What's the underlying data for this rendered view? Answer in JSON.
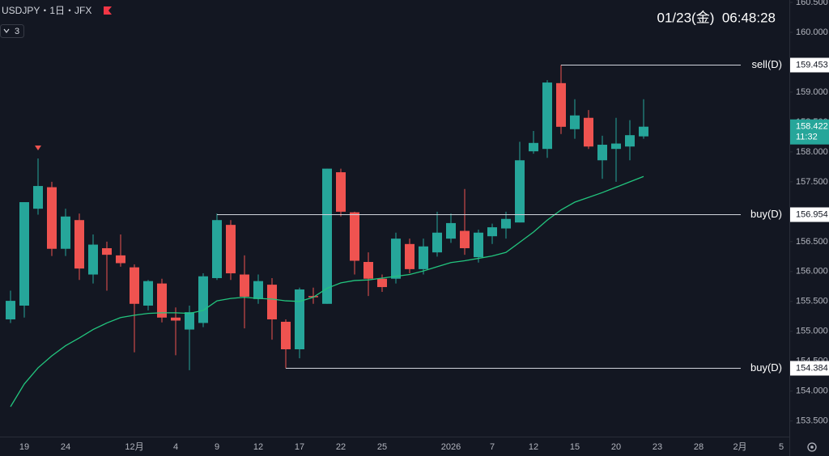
{
  "chart_data": {
    "type": "candlestick",
    "title": "USDJPY・1日・JFX",
    "indicator_count": 3,
    "clock": "01/23(金)  06:48:28",
    "categories": [
      null,
      "19",
      null,
      null,
      "24",
      null,
      null,
      null,
      null,
      "12月",
      null,
      null,
      "4",
      null,
      null,
      "9",
      null,
      null,
      "12",
      null,
      null,
      "17",
      null,
      null,
      "22",
      null,
      null,
      "25",
      null,
      null,
      null,
      null,
      "2026",
      null,
      null,
      "7",
      null,
      null,
      "12",
      null,
      null,
      "15",
      null,
      null,
      "20",
      null,
      null,
      "23",
      null,
      null,
      "28",
      null,
      null,
      "2月",
      null,
      null,
      "5"
    ],
    "open": [
      155.2,
      155.43,
      157.05,
      157.41,
      156.38,
      156.86,
      155.95,
      156.39,
      156.27,
      156.07,
      155.43,
      155.8,
      155.23,
      155.03,
      155.14,
      155.89,
      156.78,
      155.95,
      155.54,
      155.78,
      155.16,
      154.7,
      155.59,
      155.46,
      157.66,
      156.99,
      156.16,
      155.88,
      155.88,
      156.46,
      156.04,
      156.32,
      156.55,
      156.68,
      156.24,
      156.59,
      156.72,
      156.82,
      158.01,
      158.05,
      159.15,
      158.38,
      158.57,
      157.86,
      158.05,
      158.09,
      158.26,
      null,
      null,
      null,
      null,
      null,
      null,
      null,
      null,
      null,
      null
    ],
    "high": [
      155.68,
      157.16,
      157.89,
      157.5,
      157.05,
      156.97,
      156.62,
      156.5,
      156.62,
      156.12,
      155.86,
      155.88,
      155.4,
      155.43,
      155.97,
      156.97,
      156.86,
      156.27,
      155.95,
      155.89,
      155.2,
      155.73,
      155.73,
      157.72,
      157.72,
      157.0,
      156.32,
      155.95,
      156.65,
      156.55,
      156.55,
      157.0,
      156.97,
      157.38,
      156.7,
      156.8,
      157.0,
      158.17,
      158.35,
      159.2,
      159.453,
      158.88,
      158.7,
      158.27,
      158.57,
      158.53,
      158.88,
      null,
      null,
      null,
      null,
      null,
      null,
      null,
      null,
      null,
      null
    ],
    "low": [
      155.14,
      155.23,
      156.95,
      156.26,
      156.26,
      155.86,
      155.8,
      155.68,
      156.08,
      154.65,
      155.35,
      155.15,
      154.6,
      154.35,
      155.07,
      155.86,
      155.86,
      155.05,
      155.46,
      154.86,
      154.384,
      154.55,
      155.46,
      155.46,
      156.92,
      155.95,
      155.59,
      155.66,
      155.8,
      155.97,
      155.95,
      156.25,
      156.48,
      156.28,
      156.15,
      156.46,
      156.55,
      156.82,
      157.97,
      157.9,
      158.3,
      158.22,
      158.05,
      157.55,
      157.5,
      157.86,
      158.22,
      null,
      null,
      null,
      null,
      null,
      null,
      null,
      null,
      null,
      null
    ],
    "close": [
      155.51,
      157.16,
      157.43,
      156.38,
      156.92,
      156.05,
      156.45,
      156.28,
      156.14,
      155.46,
      155.84,
      155.23,
      155.18,
      155.32,
      155.92,
      156.86,
      155.97,
      155.58,
      155.84,
      155.2,
      154.7,
      155.7,
      155.57,
      157.72,
      157.0,
      156.18,
      155.88,
      155.74,
      156.55,
      156.04,
      156.42,
      156.65,
      156.81,
      156.39,
      156.65,
      156.74,
      156.88,
      157.86,
      158.15,
      159.16,
      158.42,
      158.61,
      158.09,
      158.12,
      158.14,
      158.28,
      158.422,
      null,
      null,
      null,
      null,
      null,
      null,
      null,
      null,
      null,
      null
    ],
    "up_color": "#26a69a",
    "down_color": "#ef5350",
    "ma": {
      "color": "#22c57e",
      "values": [
        153.74,
        154.12,
        154.39,
        154.59,
        154.76,
        154.89,
        155.03,
        155.14,
        155.23,
        155.27,
        155.3,
        155.31,
        155.31,
        155.3,
        155.35,
        155.51,
        155.55,
        155.57,
        155.55,
        155.54,
        155.51,
        155.5,
        155.57,
        155.72,
        155.81,
        155.85,
        155.86,
        155.89,
        155.92,
        155.95,
        156.01,
        156.08,
        156.15,
        156.18,
        156.22,
        156.26,
        156.32,
        156.49,
        156.66,
        156.86,
        157.03,
        157.16,
        157.24,
        157.32,
        157.41,
        157.5,
        157.59,
        null,
        null,
        null,
        null,
        null,
        null,
        null,
        null,
        null,
        null
      ]
    },
    "ylim": [
      153.24,
      160.54
    ],
    "yticks": [
      {
        "value": 153.5,
        "label": "153.500"
      },
      {
        "value": 154,
        "label": "154.000"
      },
      {
        "value": 154.5,
        "label": "154.500"
      },
      {
        "value": 155,
        "label": "155.000"
      },
      {
        "value": 155.5,
        "label": "155.500"
      },
      {
        "value": 156,
        "label": "156.000"
      },
      {
        "value": 156.5,
        "label": "156.500"
      },
      {
        "value": 157,
        "label": "157.000"
      },
      {
        "value": 157.5,
        "label": "157.500"
      },
      {
        "value": 158,
        "label": "158.000"
      },
      {
        "value": 158.5,
        "label": "158.500"
      },
      {
        "value": 159,
        "label": "159.000"
      },
      {
        "value": 159.5,
        "label": "159.500"
      },
      {
        "value": 160,
        "label": "160.000"
      },
      {
        "value": 160.5,
        "label": "160.500"
      }
    ],
    "levels": [
      {
        "label": "sell(D)",
        "value": 159.453
      },
      {
        "label": "buy(D)",
        "value": 156.954
      },
      {
        "label": "buy(D)",
        "value": 154.384
      }
    ],
    "last_price": 158.422,
    "countdown": "11:32"
  }
}
